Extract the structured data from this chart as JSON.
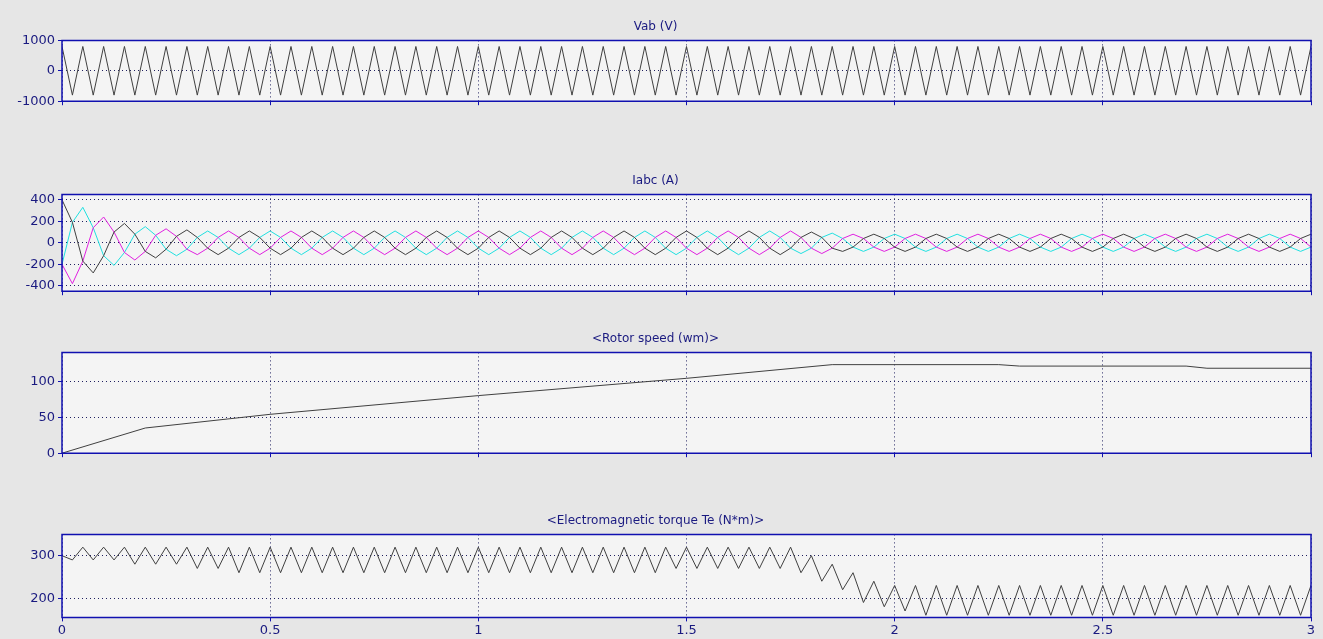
{
  "chart_data": [
    {
      "type": "line",
      "title": "Vab (V)",
      "x": [
        0,
        0.025,
        0.05,
        0.075,
        0.1,
        0.125,
        0.15,
        0.175,
        0.2,
        0.225,
        0.25,
        0.275,
        0.3,
        0.325,
        0.35,
        0.375,
        0.4,
        0.425,
        0.45,
        0.475,
        0.5,
        0.525,
        0.55,
        0.575,
        0.6,
        0.625,
        0.65,
        0.675,
        0.7,
        0.725,
        0.75,
        0.775,
        0.8,
        0.825,
        0.85,
        0.875,
        0.9,
        0.925,
        0.95,
        0.975,
        1,
        1.025,
        1.05,
        1.075,
        1.1,
        1.125,
        1.15,
        1.175,
        1.2,
        1.225,
        1.25,
        1.275,
        1.3,
        1.325,
        1.35,
        1.375,
        1.4,
        1.425,
        1.45,
        1.475,
        1.5,
        1.525,
        1.55,
        1.575,
        1.6,
        1.625,
        1.65,
        1.675,
        1.7,
        1.725,
        1.75,
        1.775,
        1.8,
        1.825,
        1.85,
        1.875,
        1.9,
        1.925,
        1.95,
        1.975,
        2,
        2.025,
        2.05,
        2.075,
        2.1,
        2.125,
        2.15,
        2.175,
        2.2,
        2.225,
        2.25,
        2.275,
        2.3,
        2.325,
        2.35,
        2.375,
        2.4,
        2.425,
        2.45,
        2.475,
        2.5,
        2.525,
        2.55,
        2.575,
        2.6,
        2.625,
        2.65,
        2.675,
        2.7,
        2.725,
        2.75,
        2.775,
        2.8,
        2.825,
        2.85,
        2.875,
        2.9,
        2.925,
        2.95,
        2.975,
        3
      ],
      "series": [
        {
          "color": "#404040",
          "values": [
            800,
            -800,
            800,
            -800,
            800,
            -800,
            800,
            -800,
            800,
            -800,
            800,
            -800,
            800,
            -800,
            800,
            -800,
            800,
            -800,
            800,
            -800,
            800,
            -800,
            800,
            -800,
            800,
            -800,
            800,
            -800,
            800,
            -800,
            800,
            -800,
            800,
            -800,
            800,
            -800,
            800,
            -800,
            800,
            -800,
            800,
            -800,
            800,
            -800,
            800,
            -800,
            800,
            -800,
            800,
            -800,
            800,
            -800,
            800,
            -800,
            800,
            -800,
            800,
            -800,
            800,
            -800,
            800,
            -800,
            800,
            -800,
            800,
            -800,
            800,
            -800,
            800,
            -800,
            800,
            -800,
            800,
            -800,
            800,
            -800,
            800,
            -800,
            800,
            -800,
            800,
            -800,
            800,
            -800,
            800,
            -800,
            800,
            -800,
            800,
            -800,
            800,
            -800,
            800,
            -800,
            800,
            -800,
            800,
            -800,
            800,
            -800,
            800,
            -800,
            800,
            -800,
            800,
            -800,
            800,
            -800,
            800,
            -800,
            800,
            -800,
            800,
            -800,
            800,
            -800,
            800,
            -800,
            800,
            -800,
            800
          ]
        }
      ],
      "xlim": [
        0,
        3
      ],
      "xticks": [
        0,
        0.5,
        1,
        1.5,
        2,
        2.5,
        3
      ],
      "ylim": [
        -1000,
        1000
      ],
      "yticks": [
        -1000,
        0,
        1000
      ],
      "grid": true,
      "legend": false,
      "marker": "none",
      "tick_labels": "y"
    },
    {
      "type": "line",
      "title": "Iabc (A)",
      "x": [
        0,
        0.025,
        0.05,
        0.075,
        0.1,
        0.125,
        0.15,
        0.175,
        0.2,
        0.225,
        0.25,
        0.275,
        0.3,
        0.325,
        0.35,
        0.375,
        0.4,
        0.425,
        0.45,
        0.475,
        0.5,
        0.525,
        0.55,
        0.575,
        0.6,
        0.625,
        0.65,
        0.675,
        0.7,
        0.725,
        0.75,
        0.775,
        0.8,
        0.825,
        0.85,
        0.875,
        0.9,
        0.925,
        0.95,
        0.975,
        1,
        1.025,
        1.05,
        1.075,
        1.1,
        1.125,
        1.15,
        1.175,
        1.2,
        1.225,
        1.25,
        1.275,
        1.3,
        1.325,
        1.35,
        1.375,
        1.4,
        1.425,
        1.45,
        1.475,
        1.5,
        1.525,
        1.55,
        1.575,
        1.6,
        1.625,
        1.65,
        1.675,
        1.7,
        1.725,
        1.75,
        1.775,
        1.8,
        1.825,
        1.85,
        1.875,
        1.9,
        1.925,
        1.95,
        1.975,
        2,
        2.025,
        2.05,
        2.075,
        2.1,
        2.125,
        2.15,
        2.175,
        2.2,
        2.225,
        2.25,
        2.275,
        2.3,
        2.325,
        2.35,
        2.375,
        2.4,
        2.425,
        2.45,
        2.475,
        2.5,
        2.525,
        2.55,
        2.575,
        2.6,
        2.625,
        2.65,
        2.675,
        2.7,
        2.725,
        2.75,
        2.775,
        2.8,
        2.825,
        2.85,
        2.875,
        2.9,
        2.925,
        2.95,
        2.975,
        3
      ],
      "series": [
        {
          "color": "#404040",
          "values": [
            400,
            190,
            -170,
            -280,
            -120,
            100,
            180,
            80,
            -80,
            -140,
            -60,
            60,
            120,
            50,
            -50,
            -110,
            -50,
            50,
            110,
            50,
            -50,
            -110,
            -50,
            50,
            110,
            50,
            -50,
            -110,
            -50,
            50,
            110,
            50,
            -50,
            -110,
            -50,
            50,
            110,
            50,
            -50,
            -110,
            -50,
            50,
            110,
            50,
            -50,
            -110,
            -50,
            50,
            110,
            50,
            -50,
            -110,
            -50,
            50,
            110,
            50,
            -50,
            -110,
            -50,
            50,
            110,
            50,
            -50,
            -110,
            -50,
            50,
            110,
            50,
            -50,
            -110,
            -50,
            50,
            100,
            50,
            -50,
            -80,
            -40,
            40,
            80,
            40,
            -40,
            -80,
            -40,
            40,
            80,
            40,
            -40,
            -80,
            -40,
            40,
            80,
            40,
            -40,
            -80,
            -40,
            40,
            80,
            40,
            -40,
            -80,
            -40,
            40,
            80,
            40,
            -40,
            -80,
            -40,
            40,
            80,
            40,
            -40,
            -80,
            -40,
            40,
            80,
            40,
            -40,
            -80,
            -40,
            40,
            80
          ]
        },
        {
          "color": "#e020e0",
          "values": [
            -200,
            -380,
            -170,
            140,
            240,
            100,
            -90,
            -160,
            -80,
            70,
            130,
            60,
            -60,
            -110,
            -50,
            50,
            110,
            50,
            -50,
            -110,
            -50,
            50,
            110,
            50,
            -50,
            -110,
            -50,
            50,
            110,
            50,
            -50,
            -110,
            -50,
            50,
            110,
            50,
            -50,
            -110,
            -50,
            50,
            110,
            50,
            -50,
            -110,
            -50,
            50,
            110,
            50,
            -50,
            -110,
            -50,
            50,
            110,
            50,
            -50,
            -110,
            -50,
            50,
            110,
            50,
            -50,
            -110,
            -50,
            50,
            110,
            50,
            -50,
            -110,
            -50,
            50,
            110,
            50,
            -50,
            -100,
            -50,
            40,
            80,
            40,
            -40,
            -80,
            -40,
            40,
            80,
            40,
            -40,
            -80,
            -40,
            40,
            80,
            40,
            -40,
            -80,
            -40,
            40,
            80,
            40,
            -40,
            -80,
            -40,
            40,
            80,
            40,
            -40,
            -80,
            -40,
            40,
            80,
            40,
            -40,
            -80,
            -40,
            40,
            80,
            40,
            -40,
            -80,
            -40,
            40,
            80,
            40,
            -40
          ]
        },
        {
          "color": "#20e0e0",
          "values": [
            -200,
            190,
            330,
            140,
            -120,
            -210,
            -90,
            80,
            150,
            70,
            -60,
            -120,
            -60,
            50,
            110,
            50,
            -50,
            -110,
            -50,
            50,
            110,
            50,
            -50,
            -110,
            -50,
            50,
            110,
            50,
            -50,
            -110,
            -50,
            50,
            110,
            50,
            -50,
            -110,
            -50,
            50,
            110,
            50,
            -50,
            -110,
            -50,
            50,
            110,
            50,
            -50,
            -110,
            -50,
            50,
            110,
            50,
            -50,
            -110,
            -50,
            50,
            110,
            50,
            -50,
            -110,
            -50,
            50,
            110,
            50,
            -50,
            -110,
            -50,
            50,
            110,
            50,
            -50,
            -100,
            -50,
            50,
            90,
            40,
            -40,
            -80,
            -40,
            40,
            80,
            40,
            -40,
            -80,
            -40,
            40,
            80,
            40,
            -40,
            -80,
            -40,
            40,
            80,
            40,
            -40,
            -80,
            -40,
            40,
            80,
            40,
            -40,
            -80,
            -40,
            40,
            80,
            40,
            -40,
            -80,
            -40,
            40,
            80,
            40,
            -40,
            -80,
            -40,
            40,
            80,
            40,
            -40,
            -80,
            -40
          ]
        }
      ],
      "xlim": [
        0,
        3
      ],
      "xticks": [
        0,
        0.5,
        1,
        1.5,
        2,
        2.5,
        3
      ],
      "ylim": [
        -450,
        450
      ],
      "yticks": [
        -400,
        -200,
        0,
        200,
        400
      ],
      "grid": true,
      "legend": false,
      "marker": "none",
      "tick_labels": "y"
    },
    {
      "type": "line",
      "title": "<Rotor speed (wm)>",
      "x": [
        0,
        0.2,
        0.5,
        1,
        1.5,
        1.85,
        2.25,
        2.3,
        2.7,
        2.75,
        3
      ],
      "series": [
        {
          "color": "#404040",
          "values": [
            0,
            35,
            54,
            80,
            104,
            123,
            123,
            121,
            121,
            118,
            118
          ]
        }
      ],
      "xlim": [
        0,
        3
      ],
      "xticks": [
        0,
        0.5,
        1,
        1.5,
        2,
        2.5,
        3
      ],
      "ylim": [
        0,
        140
      ],
      "yticks": [
        0,
        50,
        100
      ],
      "grid": true,
      "legend": false,
      "marker": "none",
      "tick_labels": "y"
    },
    {
      "type": "line",
      "title": "<Electromagnetic torque Te (N*m)>",
      "x": [
        0,
        0.025,
        0.05,
        0.075,
        0.1,
        0.125,
        0.15,
        0.175,
        0.2,
        0.225,
        0.25,
        0.275,
        0.3,
        0.325,
        0.35,
        0.375,
        0.4,
        0.425,
        0.45,
        0.475,
        0.5,
        0.525,
        0.55,
        0.575,
        0.6,
        0.625,
        0.65,
        0.675,
        0.7,
        0.725,
        0.75,
        0.775,
        0.8,
        0.825,
        0.85,
        0.875,
        0.9,
        0.925,
        0.95,
        0.975,
        1,
        1.025,
        1.05,
        1.075,
        1.1,
        1.125,
        1.15,
        1.175,
        1.2,
        1.225,
        1.25,
        1.275,
        1.3,
        1.325,
        1.35,
        1.375,
        1.4,
        1.425,
        1.45,
        1.475,
        1.5,
        1.525,
        1.55,
        1.575,
        1.6,
        1.625,
        1.65,
        1.675,
        1.7,
        1.725,
        1.75,
        1.775,
        1.8,
        1.825,
        1.85,
        1.875,
        1.9,
        1.925,
        1.95,
        1.975,
        2,
        2.025,
        2.05,
        2.075,
        2.1,
        2.125,
        2.15,
        2.175,
        2.2,
        2.225,
        2.25,
        2.275,
        2.3,
        2.325,
        2.35,
        2.375,
        2.4,
        2.425,
        2.45,
        2.475,
        2.5,
        2.525,
        2.55,
        2.575,
        2.6,
        2.625,
        2.65,
        2.675,
        2.7,
        2.725,
        2.75,
        2.775,
        2.8,
        2.825,
        2.85,
        2.875,
        2.9,
        2.925,
        2.95,
        2.975,
        3
      ],
      "series": [
        {
          "color": "#404040",
          "values": [
            300,
            290,
            320,
            290,
            320,
            290,
            320,
            280,
            320,
            280,
            320,
            280,
            320,
            270,
            320,
            270,
            320,
            260,
            320,
            260,
            320,
            260,
            320,
            260,
            320,
            260,
            320,
            260,
            320,
            260,
            320,
            260,
            320,
            260,
            320,
            260,
            320,
            260,
            320,
            260,
            320,
            260,
            320,
            260,
            320,
            260,
            320,
            260,
            320,
            260,
            320,
            260,
            320,
            260,
            320,
            260,
            320,
            260,
            320,
            270,
            320,
            270,
            320,
            270,
            320,
            270,
            320,
            270,
            320,
            270,
            320,
            260,
            300,
            240,
            280,
            220,
            260,
            190,
            240,
            180,
            230,
            170,
            230,
            160,
            230,
            160,
            230,
            160,
            230,
            160,
            230,
            160,
            230,
            160,
            230,
            160,
            230,
            160,
            230,
            160,
            230,
            160,
            230,
            160,
            230,
            160,
            230,
            160,
            230,
            160,
            230,
            160,
            230,
            160,
            230,
            160,
            230,
            160,
            230,
            160,
            230
          ]
        }
      ],
      "xlim": [
        0,
        3
      ],
      "xticks": [
        0,
        0.5,
        1,
        1.5,
        2,
        2.5,
        3
      ],
      "ylim": [
        155,
        350
      ],
      "yticks": [
        200,
        300
      ],
      "grid": true,
      "legend": false,
      "marker": "none"
    }
  ]
}
